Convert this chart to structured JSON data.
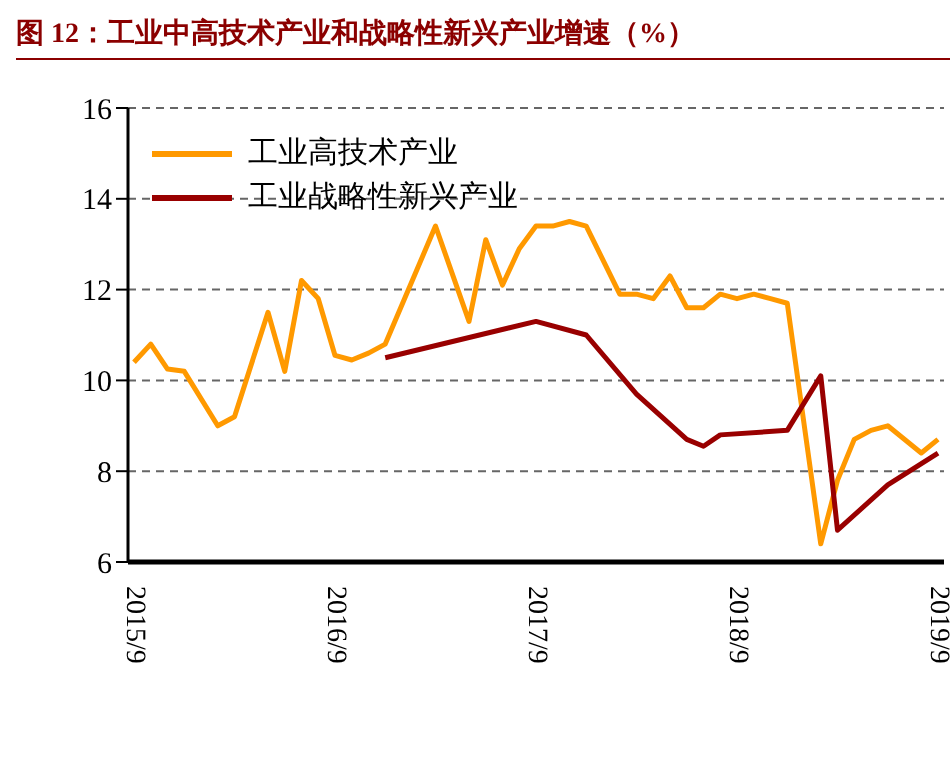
{
  "chart_data": {
    "type": "line",
    "title": "图 12：工业中高技术产业和战略性新兴产业增速（%）",
    "categories": [
      "2015/9",
      null,
      null,
      null,
      null,
      null,
      null,
      null,
      null,
      null,
      null,
      null,
      "2016/9",
      null,
      null,
      null,
      null,
      null,
      null,
      null,
      null,
      null,
      null,
      null,
      "2017/9",
      null,
      null,
      null,
      null,
      null,
      null,
      null,
      null,
      null,
      null,
      null,
      "2018/9",
      null,
      null,
      null,
      null,
      null,
      null,
      null,
      null,
      null,
      null,
      null,
      "2019/9"
    ],
    "series": [
      {
        "name": "工业高技术产业",
        "color": "#ff9900",
        "values": [
          10.4,
          10.8,
          10.25,
          10.2,
          null,
          9.0,
          9.2,
          null,
          11.5,
          10.2,
          12.2,
          11.8,
          10.55,
          10.45,
          10.6,
          10.8,
          null,
          null,
          13.4,
          null,
          11.3,
          13.1,
          12.1,
          12.9,
          13.4,
          13.4,
          13.5,
          13.4,
          null,
          11.9,
          11.9,
          11.8,
          12.3,
          11.6,
          11.6,
          11.9,
          11.8,
          11.9,
          11.8,
          11.7,
          null,
          6.4,
          7.8,
          8.7,
          8.9,
          9.0,
          null,
          8.4,
          8.7
        ]
      },
      {
        "name": "工业战略性新兴产业",
        "color": "#990000",
        "values": [
          null,
          null,
          null,
          null,
          null,
          null,
          null,
          null,
          null,
          null,
          null,
          null,
          null,
          null,
          null,
          10.5,
          null,
          null,
          null,
          null,
          null,
          null,
          null,
          null,
          11.3,
          null,
          null,
          11.0,
          null,
          null,
          9.7,
          null,
          null,
          8.7,
          8.55,
          8.8,
          null,
          null,
          null,
          8.9,
          null,
          10.1,
          6.7,
          null,
          null,
          7.7,
          null,
          null,
          8.4
        ]
      }
    ],
    "ylim": [
      6,
      16
    ],
    "yticks": [
      6,
      8,
      10,
      12,
      14,
      16
    ],
    "grid": "y",
    "legend": "top left",
    "marker": "none",
    "line_style": "solid"
  }
}
